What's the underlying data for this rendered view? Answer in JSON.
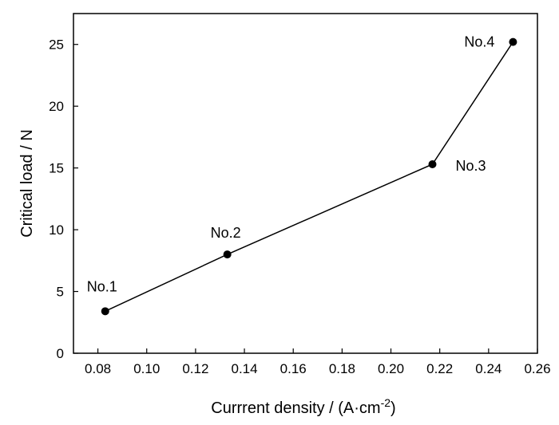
{
  "chart_data": {
    "type": "line",
    "xlabel": "Currrent density / (A·cm",
    "xlabel_sup": "-2",
    "xlabel_end": ")",
    "ylabel": "Critical load / N",
    "xlim": [
      0.07,
      0.26
    ],
    "ylim": [
      0,
      27.5
    ],
    "x_ticks": [
      0.08,
      0.1,
      0.12,
      0.14,
      0.16,
      0.18,
      0.2,
      0.22,
      0.24,
      0.26
    ],
    "x_tick_labels": [
      "0.08",
      "0.10",
      "0.12",
      "0.14",
      "0.16",
      "0.18",
      "0.20",
      "0.22",
      "0.24",
      "0.26"
    ],
    "y_ticks": [
      0,
      5,
      10,
      15,
      20,
      25
    ],
    "y_tick_labels": [
      "0",
      "5",
      "10",
      "15",
      "20",
      "25"
    ],
    "grid": false,
    "marker_color": "#000000",
    "line_color": "#000000",
    "points": [
      {
        "label": "No.1",
        "x": 0.083,
        "y": 3.4
      },
      {
        "label": "No.2",
        "x": 0.133,
        "y": 8.0
      },
      {
        "label": "No.3",
        "x": 0.217,
        "y": 15.3
      },
      {
        "label": "No.4",
        "x": 0.25,
        "y": 25.2
      }
    ]
  }
}
